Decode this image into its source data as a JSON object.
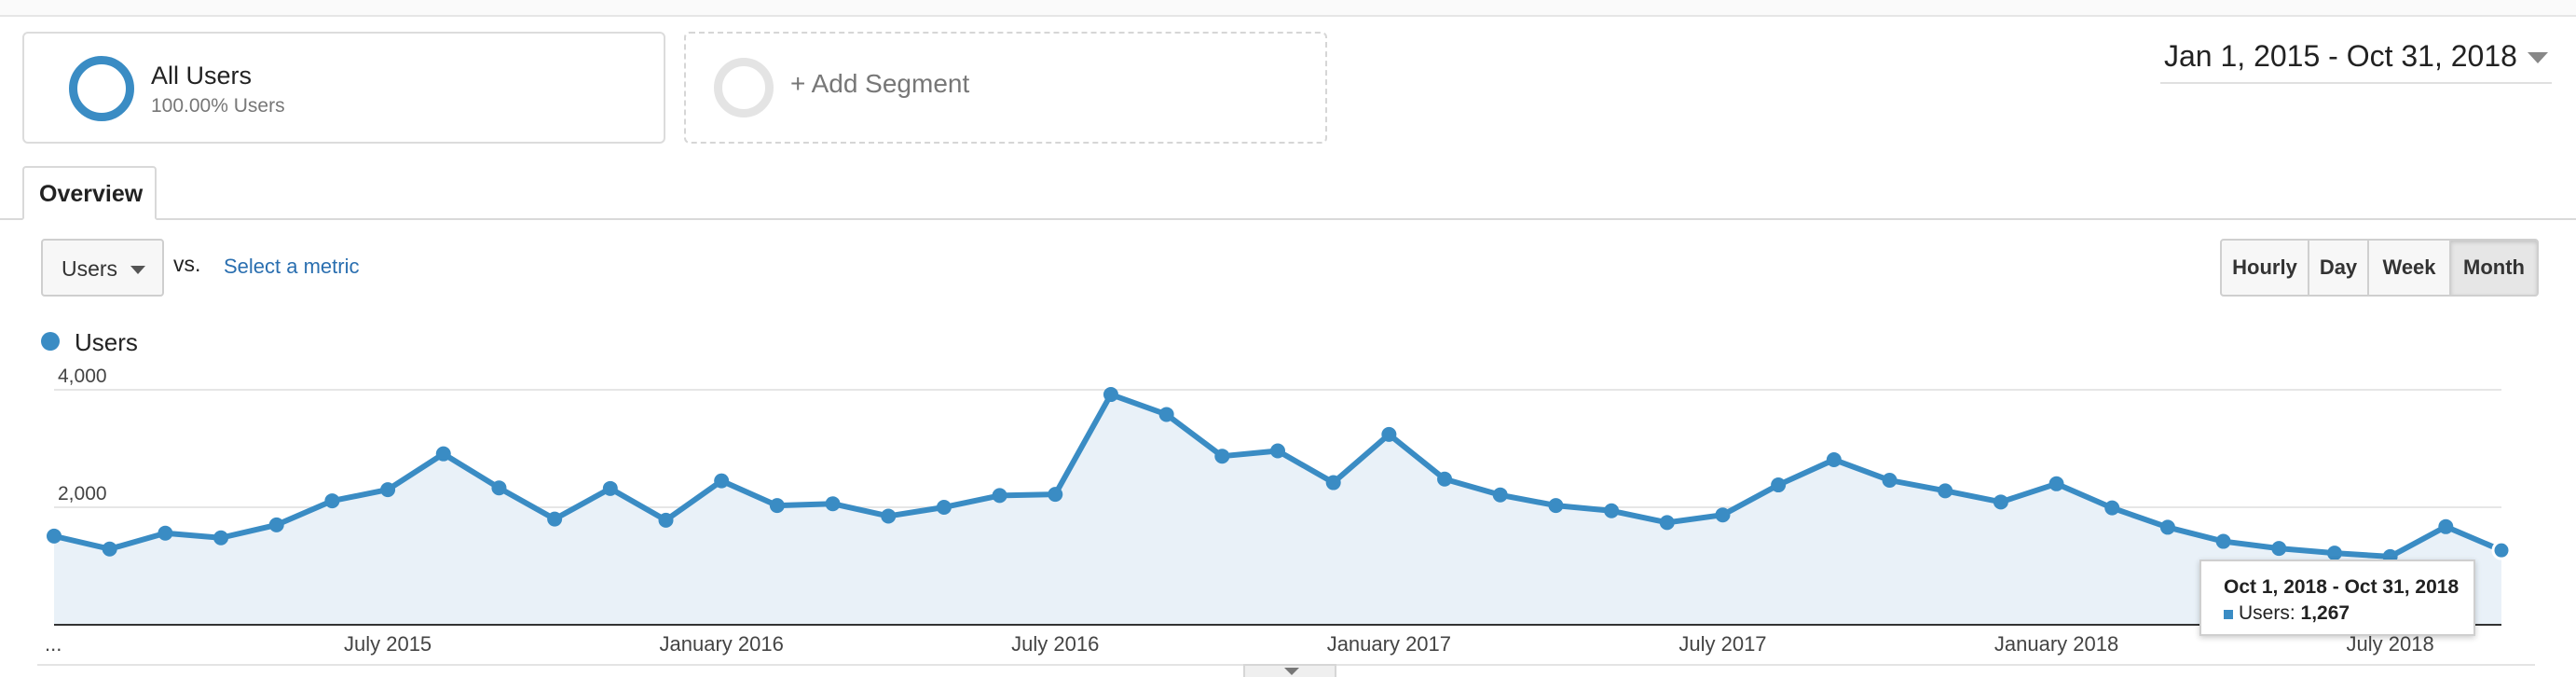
{
  "segments": {
    "all_users": {
      "title": "All Users",
      "subtitle": "100.00% Users"
    },
    "add_segment": {
      "label": "+ Add Segment"
    }
  },
  "date_range": "Jan 1, 2015 - Oct 31, 2018",
  "tabs": [
    {
      "label": "Overview",
      "active": true
    }
  ],
  "metric": {
    "selected": "Users",
    "vs": "vs.",
    "select_metric": "Select a metric"
  },
  "granularity": [
    {
      "label": "Hourly",
      "active": false
    },
    {
      "label": "Day",
      "active": false
    },
    {
      "label": "Week",
      "active": false
    },
    {
      "label": "Month",
      "active": true
    }
  ],
  "colors": {
    "accent": "#3a8cc4",
    "fill": "#e9f1f8",
    "link": "#2a6fb0"
  },
  "tooltip": {
    "range": "Oct 1, 2018 - Oct 31, 2018",
    "metric_label": "Users:",
    "metric_value": "1,267"
  },
  "chart_data": {
    "type": "area",
    "series": [
      {
        "name": "Users",
        "values": [
          1510,
          1290,
          1560,
          1480,
          1700,
          2110,
          2300,
          2910,
          2330,
          1800,
          2320,
          1780,
          2450,
          2030,
          2060,
          1850,
          2000,
          2200,
          2220,
          3920,
          3580,
          2870,
          2960,
          2420,
          3240,
          2480,
          2210,
          2030,
          1940,
          1740,
          1870,
          2380,
          2810,
          2460,
          2280,
          2090,
          2400,
          1990,
          1660,
          1420,
          1300,
          1220,
          1160,
          1670,
          1267
        ]
      }
    ],
    "x_tick_labels": [
      "...",
      "July 2015",
      "January 2016",
      "July 2016",
      "January 2017",
      "July 2017",
      "January 2018",
      "July 2018"
    ],
    "y_tick_labels": [
      "4,000",
      "2,000"
    ],
    "ylim": [
      0,
      4000
    ],
    "grid": true,
    "legend": "top-left"
  }
}
